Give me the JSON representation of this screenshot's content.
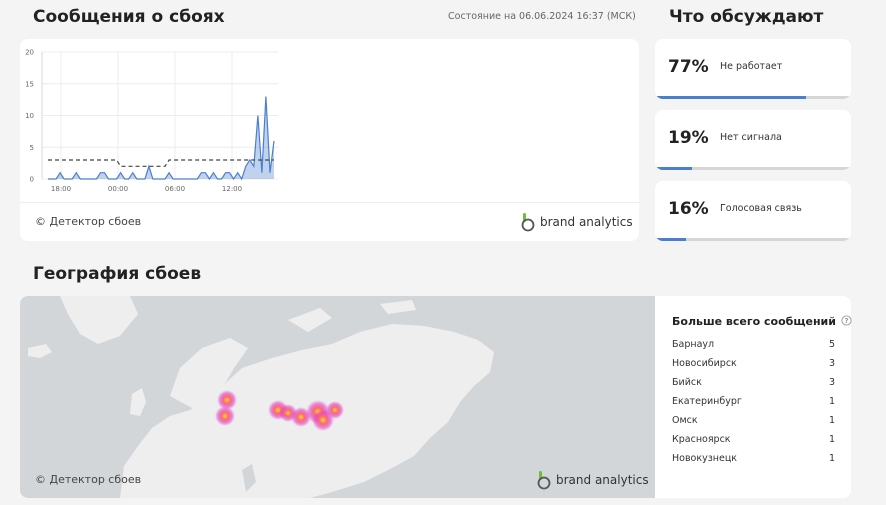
{
  "header": {
    "title": "Сообщения о сбоях",
    "status": "Состояние на 06.06.2024 16:37 (МСК)",
    "topics_title": "Что обсуждают",
    "geo_title": "География сбоев"
  },
  "chart_data": {
    "type": "area",
    "x_tick_labels": [
      "18:00",
      "00:00",
      "06:00",
      "12:00"
    ],
    "y_tick_labels": [
      "0",
      "5",
      "10",
      "15",
      "20"
    ],
    "ylim": [
      0,
      20
    ],
    "grid": true,
    "series": [
      {
        "kind": "reports",
        "color": "#4a7fcf",
        "values": [
          0,
          0,
          0,
          1,
          0,
          0,
          0,
          1,
          0,
          0,
          0,
          0,
          0,
          1,
          1,
          0,
          0,
          0,
          1,
          0,
          0,
          1,
          0,
          0,
          0,
          2,
          0,
          0,
          0,
          0,
          1,
          0,
          0,
          0,
          0,
          0,
          0,
          0,
          1,
          1,
          0,
          1,
          0,
          0,
          1,
          1,
          0,
          1,
          0,
          2,
          3,
          2,
          10,
          1,
          13,
          1,
          6
        ]
      },
      {
        "kind": "baseline",
        "color": "#444444",
        "values": [
          3,
          3,
          3,
          3,
          3,
          3,
          3,
          3,
          3,
          3,
          3,
          3,
          3,
          3,
          3,
          3,
          3,
          3,
          2,
          2,
          2,
          2,
          2,
          2,
          2,
          2,
          2,
          2,
          2,
          2,
          3,
          3,
          3,
          3,
          3,
          3,
          3,
          3,
          3,
          3,
          3,
          3,
          3,
          3,
          3,
          3,
          3,
          3,
          3,
          3,
          3,
          3,
          3,
          3,
          3,
          3,
          3
        ]
      }
    ]
  },
  "chart_footer": {
    "copyright": "© Детектор сбоев",
    "brand": "brand analytics"
  },
  "topics": [
    {
      "percent": "77%",
      "label": "Не работает",
      "value": 0.77
    },
    {
      "percent": "19%",
      "label": "Нет сигнала",
      "value": 0.19
    },
    {
      "percent": "16%",
      "label": "Голосовая связь",
      "value": 0.16
    }
  ],
  "geo": {
    "copyright": "© Детектор сбоев",
    "brand": "brand analytics",
    "most_title": "Больше всего сообщений",
    "cities": [
      {
        "name": "Барнаул",
        "count": "5"
      },
      {
        "name": "Новосибирск",
        "count": "3"
      },
      {
        "name": "Бийск",
        "count": "3"
      },
      {
        "name": "Екатеринбург",
        "count": "1"
      },
      {
        "name": "Омск",
        "count": "1"
      },
      {
        "name": "Красноярск",
        "count": "1"
      },
      {
        "name": "Новокузнецк",
        "count": "1"
      }
    ]
  },
  "colors": {
    "accent": "#4a7fcf",
    "map_water": "#d3d6d9",
    "map_land": "#eeeeee",
    "heat_core": "#ffd83a",
    "heat_outer": "#e040c8"
  }
}
